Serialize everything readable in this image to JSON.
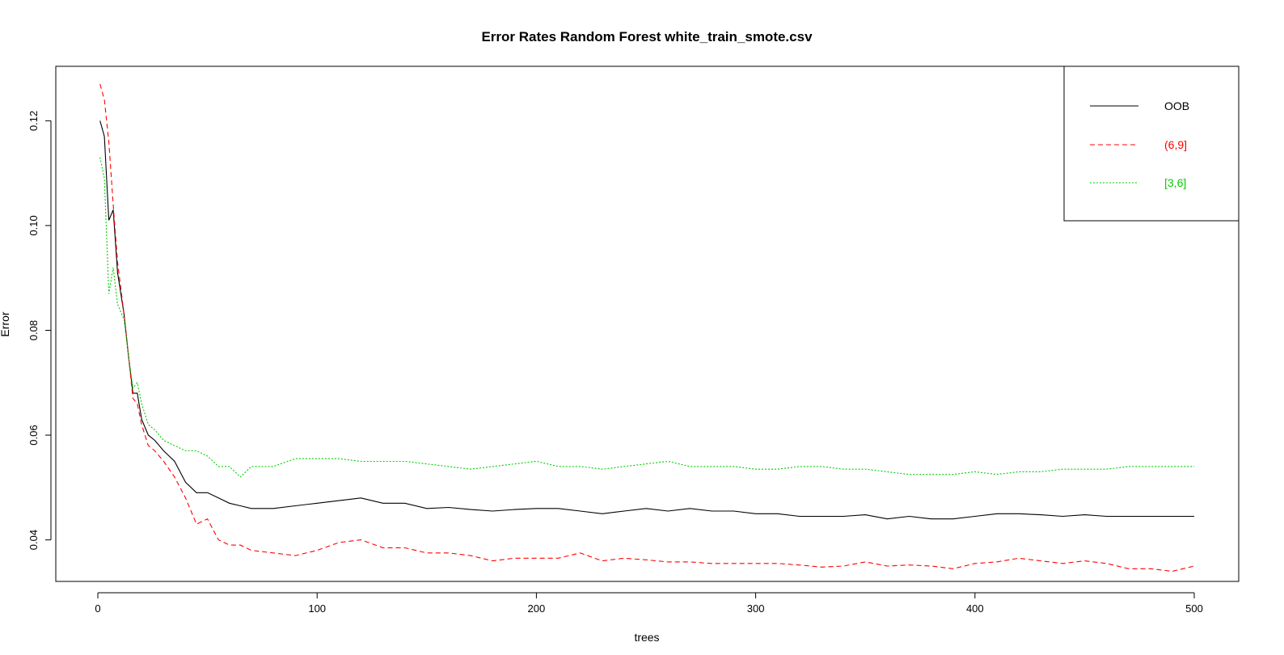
{
  "chart_data": {
    "type": "line",
    "title": "Error Rates Random Forest white_train_smote.csv",
    "xlabel": "trees",
    "ylabel": "Error",
    "xlim": [
      1,
      500
    ],
    "ylim": [
      0.033,
      0.127
    ],
    "x_ticks": [
      0,
      100,
      200,
      300,
      400,
      500
    ],
    "x_tick_labels": [
      "0",
      "100",
      "200",
      "300",
      "400",
      "500"
    ],
    "y_ticks": [
      0.04,
      0.06,
      0.08,
      0.1,
      0.12
    ],
    "y_tick_labels": [
      "0.04",
      "0.06",
      "0.08",
      "0.10",
      "0.12"
    ],
    "grid": false,
    "legend_position": "top-right",
    "series": [
      {
        "name": "OOB",
        "color": "#000000",
        "dash": "solid",
        "x": [
          1,
          3,
          5,
          7,
          9,
          12,
          14,
          16,
          18,
          20,
          23,
          26,
          30,
          35,
          40,
          45,
          50,
          55,
          60,
          65,
          70,
          80,
          90,
          100,
          110,
          120,
          130,
          140,
          150,
          160,
          170,
          180,
          190,
          200,
          210,
          220,
          230,
          240,
          250,
          260,
          270,
          280,
          290,
          300,
          310,
          320,
          330,
          340,
          350,
          360,
          370,
          380,
          390,
          400,
          410,
          420,
          430,
          440,
          450,
          460,
          470,
          480,
          490,
          500
        ],
        "values": [
          0.12,
          0.117,
          0.101,
          0.103,
          0.091,
          0.083,
          0.075,
          0.068,
          0.068,
          0.063,
          0.06,
          0.059,
          0.057,
          0.055,
          0.051,
          0.049,
          0.049,
          0.048,
          0.047,
          0.0465,
          0.046,
          0.046,
          0.0465,
          0.047,
          0.0475,
          0.048,
          0.047,
          0.047,
          0.046,
          0.0462,
          0.0458,
          0.0455,
          0.0458,
          0.046,
          0.046,
          0.0455,
          0.045,
          0.0455,
          0.046,
          0.0455,
          0.046,
          0.0455,
          0.0455,
          0.045,
          0.045,
          0.0445,
          0.0445,
          0.0445,
          0.0448,
          0.044,
          0.0445,
          0.044,
          0.044,
          0.0445,
          0.045,
          0.045,
          0.0448,
          0.0445,
          0.0448,
          0.0445,
          0.0445,
          0.0445,
          0.0445,
          0.0445
        ]
      },
      {
        "name": "(6,9]",
        "color": "#ff0000",
        "dash": "dashed",
        "x": [
          1,
          3,
          5,
          7,
          9,
          12,
          14,
          16,
          18,
          20,
          23,
          26,
          30,
          35,
          40,
          45,
          50,
          55,
          60,
          65,
          70,
          80,
          90,
          100,
          110,
          120,
          130,
          140,
          150,
          160,
          170,
          180,
          190,
          200,
          210,
          220,
          230,
          240,
          250,
          260,
          270,
          280,
          290,
          300,
          310,
          320,
          330,
          340,
          350,
          360,
          370,
          380,
          390,
          400,
          410,
          420,
          430,
          440,
          450,
          460,
          470,
          480,
          490,
          500
        ],
        "values": [
          0.127,
          0.124,
          0.116,
          0.104,
          0.093,
          0.083,
          0.075,
          0.067,
          0.066,
          0.062,
          0.058,
          0.057,
          0.055,
          0.052,
          0.048,
          0.043,
          0.044,
          0.04,
          0.039,
          0.039,
          0.038,
          0.0375,
          0.037,
          0.038,
          0.0395,
          0.04,
          0.0385,
          0.0385,
          0.0375,
          0.0375,
          0.037,
          0.036,
          0.0365,
          0.0365,
          0.0365,
          0.0375,
          0.036,
          0.0365,
          0.0362,
          0.0358,
          0.0358,
          0.0355,
          0.0355,
          0.0355,
          0.0355,
          0.0352,
          0.0348,
          0.035,
          0.0358,
          0.035,
          0.0352,
          0.035,
          0.0345,
          0.0355,
          0.0358,
          0.0365,
          0.036,
          0.0355,
          0.036,
          0.0355,
          0.0345,
          0.0345,
          0.034,
          0.035
        ]
      },
      {
        "name": "[3,6]",
        "color": "#00cd00",
        "dash": "dotted",
        "x": [
          1,
          3,
          5,
          7,
          9,
          12,
          14,
          16,
          18,
          20,
          23,
          26,
          30,
          35,
          40,
          45,
          50,
          55,
          60,
          65,
          70,
          80,
          90,
          100,
          110,
          120,
          130,
          140,
          150,
          160,
          170,
          180,
          190,
          200,
          210,
          220,
          230,
          240,
          250,
          260,
          270,
          280,
          290,
          300,
          310,
          320,
          330,
          340,
          350,
          360,
          370,
          380,
          390,
          400,
          410,
          420,
          430,
          440,
          450,
          460,
          470,
          480,
          490,
          500
        ],
        "values": [
          0.113,
          0.109,
          0.087,
          0.092,
          0.085,
          0.082,
          0.075,
          0.069,
          0.07,
          0.066,
          0.062,
          0.061,
          0.059,
          0.058,
          0.057,
          0.057,
          0.056,
          0.054,
          0.054,
          0.052,
          0.054,
          0.054,
          0.0555,
          0.0555,
          0.0555,
          0.055,
          0.055,
          0.055,
          0.0545,
          0.054,
          0.0535,
          0.054,
          0.0545,
          0.055,
          0.054,
          0.054,
          0.0535,
          0.054,
          0.0545,
          0.055,
          0.054,
          0.054,
          0.054,
          0.0535,
          0.0535,
          0.054,
          0.054,
          0.0535,
          0.0535,
          0.053,
          0.0525,
          0.0525,
          0.0525,
          0.053,
          0.0525,
          0.053,
          0.053,
          0.0535,
          0.0535,
          0.0535,
          0.054,
          0.054,
          0.054,
          0.054
        ]
      }
    ]
  }
}
